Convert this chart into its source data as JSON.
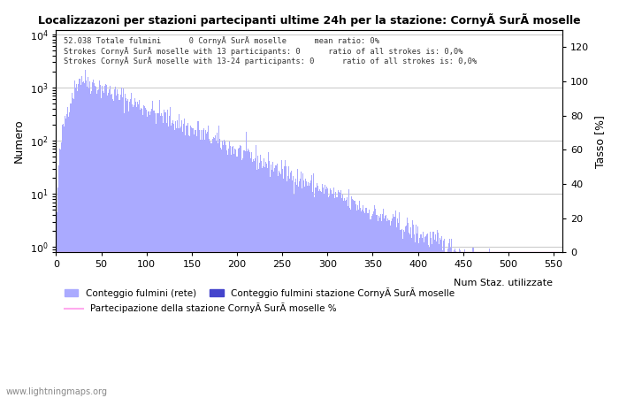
{
  "title": "Localizzazoni per stazioni partecipanti ultime 24h per la stazione: CornyÃ SurÃ moselle",
  "annotation_lines": [
    "52.038 Totale fulmini      0 CornyÃ SurÃ moselle      mean ratio: 0%",
    "Strokes CornyÃ SurÃ moselle with 13 participants: 0      ratio of all strokes is: 0,0%",
    "Strokes CornyÃ SurÃ moselle with 13-24 participants: 0      ratio of all strokes is: 0,0%"
  ],
  "ylabel_left": "Numero",
  "ylabel_right": "Tasso [%]",
  "xlabel": "Num Staz. utilizzate",
  "xlim": [
    0,
    560
  ],
  "ylim_right": [
    0,
    130
  ],
  "bar_color_light": "#aaaaff",
  "bar_color_dark": "#4444cc",
  "line_color": "#ffaaee",
  "legend_labels": [
    "Conteggio fulmini (rete)",
    "Conteggio fulmini stazione CornyÃ SurÃ moselle",
    "Partecipazione della stazione CornyÃ SurÃ moselle %"
  ],
  "watermark": "www.lightningmaps.org",
  "xticks": [
    0,
    50,
    100,
    150,
    200,
    250,
    300,
    350,
    400,
    450,
    500,
    550
  ],
  "yticks_right": [
    0,
    20,
    40,
    60,
    80,
    100,
    120
  ],
  "background_color": "#ffffff",
  "grid_color": "#cccccc"
}
